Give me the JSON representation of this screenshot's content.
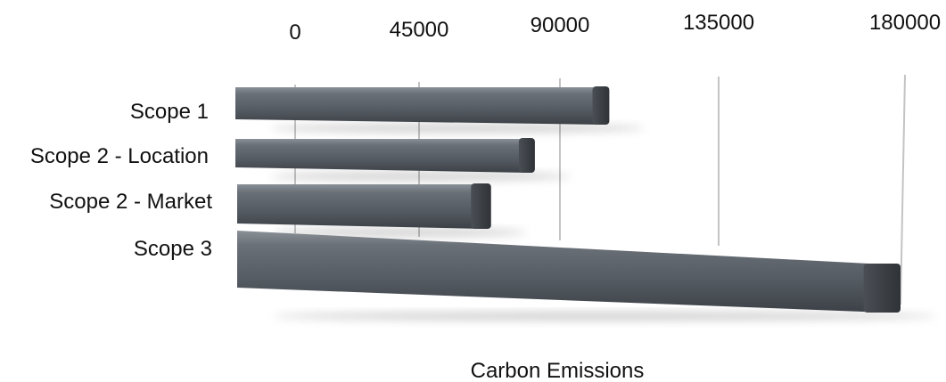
{
  "chart_data": {
    "type": "bar",
    "orientation": "horizontal",
    "style": "3d-perspective",
    "categories": [
      "Scope 1",
      "Scope 2 - Location",
      "Scope 2 - Market",
      "Scope 3"
    ],
    "values": [
      104000,
      82000,
      68000,
      180000
    ],
    "xlabel": "Carbon Emissions",
    "ylabel": "",
    "xlim": [
      0,
      180000
    ],
    "ticks": [
      "0",
      "45000",
      "90000",
      "135000",
      "180000"
    ],
    "tick_values": [
      0,
      45000,
      90000,
      135000,
      180000
    ],
    "grid": true,
    "legend": "none",
    "bar_color": "#5b6168",
    "bar_edge_color": "#3a3f45"
  }
}
